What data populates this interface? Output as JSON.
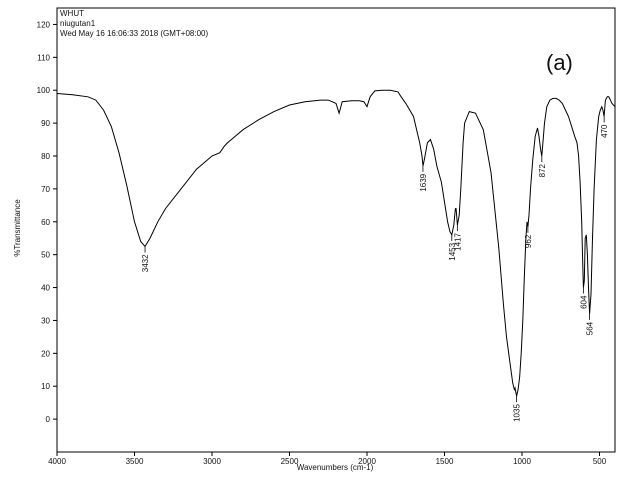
{
  "header": {
    "line1": "WHUT",
    "line2": "niugutan1",
    "line3": "Wed May 16 16:06:33 2018 (GMT+08:00)"
  },
  "panel_label": "(a)",
  "chart_data": {
    "type": "line",
    "title": "",
    "xlabel": "Wavenumbers (cm-1)",
    "ylabel": "%Transmittance",
    "xlim": [
      4000,
      400
    ],
    "ylim": [
      -10,
      125
    ],
    "x_reversed": true,
    "grid": false,
    "xticks": [
      4000,
      3500,
      3000,
      2500,
      2000,
      1500,
      1000,
      500
    ],
    "yticks": [
      0,
      10,
      20,
      30,
      40,
      50,
      60,
      70,
      80,
      90,
      100,
      110,
      120
    ],
    "series": [
      {
        "x": [
          4000,
          3900,
          3800,
          3750,
          3700,
          3650,
          3600,
          3550,
          3500,
          3460,
          3432,
          3400,
          3350,
          3300,
          3200,
          3100,
          3000,
          2950,
          2920,
          2900,
          2850,
          2800,
          2700,
          2600,
          2500,
          2400,
          2300,
          2250,
          2200,
          2180,
          2160,
          2100,
          2050,
          2020,
          2000,
          1980,
          1950,
          1900,
          1850,
          1800,
          1780,
          1750,
          1700,
          1680,
          1660,
          1645,
          1639,
          1630,
          1610,
          1590,
          1570,
          1550,
          1520,
          1500,
          1480,
          1465,
          1453,
          1440,
          1430,
          1425,
          1417,
          1405,
          1395,
          1380,
          1370,
          1340,
          1300,
          1250,
          1200,
          1150,
          1120,
          1100,
          1080,
          1060,
          1050,
          1045,
          1035,
          1025,
          1015,
          1005,
          995,
          985,
          975,
          968,
          962,
          955,
          945,
          930,
          915,
          900,
          890,
          880,
          872,
          865,
          855,
          840,
          820,
          800,
          780,
          760,
          740,
          720,
          700,
          680,
          660,
          645,
          635,
          625,
          615,
          610,
          604,
          598,
          592,
          585,
          578,
          571,
          564,
          555,
          545,
          535,
          520,
          505,
          495,
          485,
          478,
          470,
          462,
          450,
          440,
          430,
          420,
          400
        ],
        "y": [
          99,
          98.6,
          98,
          97,
          94,
          89,
          81,
          71,
          60,
          54,
          52.5,
          55,
          60,
          64,
          70,
          76,
          80,
          81,
          83,
          84,
          86,
          88,
          91,
          93.5,
          95.5,
          96.5,
          97,
          97,
          96,
          93,
          96.5,
          96.8,
          96.8,
          96.5,
          95,
          98,
          99.8,
          100,
          100,
          99.5,
          98,
          96,
          92,
          88,
          84,
          80,
          77,
          79,
          84,
          85,
          82,
          77,
          72,
          66,
          60,
          57,
          56,
          59,
          64,
          64,
          59,
          62,
          70,
          84,
          90,
          93.5,
          93,
          88,
          75,
          52,
          35,
          25,
          18,
          11,
          9,
          9.5,
          7,
          9,
          13,
          20,
          30,
          43,
          55,
          60,
          58.5,
          62,
          70,
          79,
          86,
          88.5,
          86,
          82,
          80,
          84,
          90,
          95,
          97,
          97.5,
          97.5,
          97,
          96,
          94,
          92,
          89,
          86,
          84,
          80,
          72,
          60,
          50,
          40,
          42,
          55,
          56,
          50,
          40,
          32,
          38,
          55,
          70,
          85,
          92,
          94,
          95,
          94,
          92,
          97,
          98,
          98,
          97,
          96,
          95
        ]
      }
    ],
    "annotations": [
      {
        "label": "3432",
        "x": 3432,
        "y": 52.5
      },
      {
        "label": "1639",
        "x": 1639,
        "y": 77
      },
      {
        "label": "1453",
        "x": 1453,
        "y": 56
      },
      {
        "label": "1417",
        "x": 1417,
        "y": 59
      },
      {
        "label": "1035",
        "x": 1035,
        "y": 7
      },
      {
        "label": "962",
        "x": 962,
        "y": 58.5
      },
      {
        "label": "872",
        "x": 872,
        "y": 80
      },
      {
        "label": "604",
        "x": 604,
        "y": 40
      },
      {
        "label": "564",
        "x": 564,
        "y": 32
      },
      {
        "label": "470",
        "x": 470,
        "y": 92
      }
    ]
  }
}
